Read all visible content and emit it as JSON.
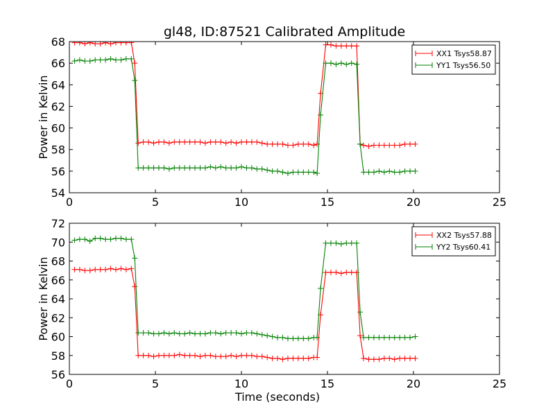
{
  "figure": {
    "title": "gl48, ID:87521 Calibrated Amplitude"
  },
  "chart_data": [
    {
      "type": "line",
      "title": "gl48, ID:87521 Calibrated Amplitude",
      "xlabel": "",
      "ylabel": "Power in Kelvin",
      "xlim": [
        0,
        25
      ],
      "ylim": [
        54,
        68
      ],
      "xticks": [
        "0",
        "5",
        "10",
        "15",
        "20",
        "25"
      ],
      "yticks": [
        "54",
        "56",
        "58",
        "60",
        "62",
        "64",
        "66",
        "68"
      ],
      "grid": false,
      "legend_position": "top-right",
      "x": [
        0.3,
        0.6,
        0.9,
        1.2,
        1.5,
        1.8,
        2.1,
        2.4,
        2.7,
        3.0,
        3.3,
        3.6,
        3.8,
        4.0,
        4.3,
        4.6,
        4.9,
        5.2,
        5.5,
        5.8,
        6.1,
        6.4,
        6.7,
        7.0,
        7.3,
        7.6,
        7.9,
        8.2,
        8.5,
        8.8,
        9.1,
        9.4,
        9.7,
        10.0,
        10.3,
        10.6,
        10.9,
        11.2,
        11.5,
        11.8,
        12.1,
        12.4,
        12.7,
        13.0,
        13.3,
        13.6,
        13.9,
        14.2,
        14.4,
        14.6,
        14.9,
        15.2,
        15.5,
        15.8,
        16.1,
        16.4,
        16.7,
        16.9,
        17.1,
        17.4,
        17.7,
        18.0,
        18.3,
        18.6,
        18.9,
        19.2,
        19.5,
        19.8,
        20.1
      ],
      "series": [
        {
          "name": "XX1 Tsys58.87",
          "color": "#ff0000",
          "values": [
            67.9,
            67.9,
            67.8,
            67.9,
            67.8,
            67.8,
            67.9,
            67.8,
            67.9,
            67.9,
            67.9,
            67.9,
            66.0,
            58.6,
            58.7,
            58.7,
            58.6,
            58.7,
            58.7,
            58.6,
            58.7,
            58.7,
            58.7,
            58.7,
            58.7,
            58.7,
            58.6,
            58.7,
            58.7,
            58.7,
            58.6,
            58.7,
            58.6,
            58.7,
            58.7,
            58.7,
            58.7,
            58.6,
            58.5,
            58.5,
            58.5,
            58.5,
            58.4,
            58.4,
            58.5,
            58.5,
            58.5,
            58.4,
            58.5,
            63.2,
            67.7,
            67.7,
            67.6,
            67.6,
            67.6,
            67.6,
            67.6,
            58.5,
            58.4,
            58.3,
            58.4,
            58.4,
            58.4,
            58.4,
            58.4,
            58.4,
            58.5,
            58.5,
            58.5
          ]
        },
        {
          "name": "YY1 Tsys56.50",
          "color": "#008000",
          "values": [
            66.2,
            66.3,
            66.2,
            66.2,
            66.3,
            66.3,
            66.3,
            66.4,
            66.3,
            66.3,
            66.4,
            66.4,
            64.4,
            56.3,
            56.3,
            56.3,
            56.3,
            56.3,
            56.3,
            56.2,
            56.3,
            56.3,
            56.3,
            56.3,
            56.3,
            56.3,
            56.3,
            56.4,
            56.3,
            56.4,
            56.3,
            56.3,
            56.3,
            56.4,
            56.3,
            56.3,
            56.2,
            56.2,
            56.1,
            56.0,
            56.0,
            55.9,
            55.8,
            55.9,
            55.9,
            55.9,
            55.9,
            55.9,
            55.8,
            61.2,
            66.0,
            66.0,
            65.9,
            66.0,
            65.9,
            66.0,
            65.9,
            58.5,
            55.9,
            55.9,
            55.9,
            56.0,
            55.9,
            56.0,
            55.9,
            55.9,
            56.0,
            56.0,
            56.0
          ]
        }
      ]
    },
    {
      "type": "line",
      "title": "",
      "xlabel": "Time (seconds)",
      "ylabel": "Power in Kelvin",
      "xlim": [
        0,
        25
      ],
      "ylim": [
        56,
        72
      ],
      "xticks": [
        "0",
        "5",
        "10",
        "15",
        "20",
        "25"
      ],
      "yticks": [
        "56",
        "58",
        "60",
        "62",
        "64",
        "66",
        "68",
        "70",
        "72"
      ],
      "grid": false,
      "legend_position": "top-right",
      "x": [
        0.3,
        0.6,
        0.9,
        1.2,
        1.5,
        1.8,
        2.1,
        2.4,
        2.7,
        3.0,
        3.3,
        3.6,
        3.8,
        4.0,
        4.3,
        4.6,
        4.9,
        5.2,
        5.5,
        5.8,
        6.1,
        6.4,
        6.7,
        7.0,
        7.3,
        7.6,
        7.9,
        8.2,
        8.5,
        8.8,
        9.1,
        9.4,
        9.7,
        10.0,
        10.3,
        10.6,
        10.9,
        11.2,
        11.5,
        11.8,
        12.1,
        12.4,
        12.7,
        13.0,
        13.3,
        13.6,
        13.9,
        14.2,
        14.4,
        14.6,
        14.9,
        15.2,
        15.5,
        15.8,
        16.1,
        16.4,
        16.7,
        16.9,
        17.1,
        17.4,
        17.7,
        18.0,
        18.3,
        18.6,
        18.9,
        19.2,
        19.5,
        19.8,
        20.1
      ],
      "series": [
        {
          "name": "XX2 Tsys57.88",
          "color": "#ff0000",
          "values": [
            67.1,
            67.1,
            67.0,
            67.0,
            67.1,
            67.1,
            67.1,
            67.2,
            67.1,
            67.2,
            67.1,
            67.2,
            65.3,
            58.0,
            58.0,
            58.0,
            57.9,
            58.0,
            58.0,
            58.0,
            58.0,
            58.1,
            58.0,
            58.0,
            58.0,
            57.9,
            58.0,
            58.0,
            57.9,
            57.9,
            57.9,
            58.0,
            57.9,
            58.0,
            58.0,
            58.0,
            57.9,
            57.9,
            57.8,
            57.7,
            57.7,
            57.6,
            57.7,
            57.7,
            57.7,
            57.7,
            57.7,
            57.8,
            57.8,
            62.3,
            66.8,
            66.8,
            66.8,
            66.7,
            66.8,
            66.8,
            66.8,
            60.1,
            57.7,
            57.6,
            57.6,
            57.6,
            57.7,
            57.7,
            57.6,
            57.7,
            57.7,
            57.7,
            57.7
          ]
        },
        {
          "name": "YY2 Tsys60.41",
          "color": "#008000",
          "values": [
            70.2,
            70.3,
            70.3,
            70.1,
            70.4,
            70.4,
            70.3,
            70.3,
            70.4,
            70.4,
            70.3,
            70.3,
            68.3,
            60.4,
            60.4,
            60.4,
            60.3,
            60.3,
            60.4,
            60.3,
            60.4,
            60.3,
            60.3,
            60.4,
            60.3,
            60.3,
            60.3,
            60.4,
            60.4,
            60.3,
            60.4,
            60.4,
            60.4,
            60.3,
            60.4,
            60.4,
            60.3,
            60.2,
            60.1,
            60.0,
            59.9,
            59.9,
            59.8,
            59.8,
            59.8,
            59.8,
            59.8,
            59.9,
            59.9,
            65.1,
            69.9,
            69.9,
            69.9,
            69.8,
            69.9,
            69.9,
            69.9,
            62.6,
            59.9,
            59.9,
            59.9,
            59.9,
            59.9,
            59.9,
            59.9,
            59.9,
            59.9,
            59.9,
            60.0
          ]
        }
      ]
    }
  ]
}
